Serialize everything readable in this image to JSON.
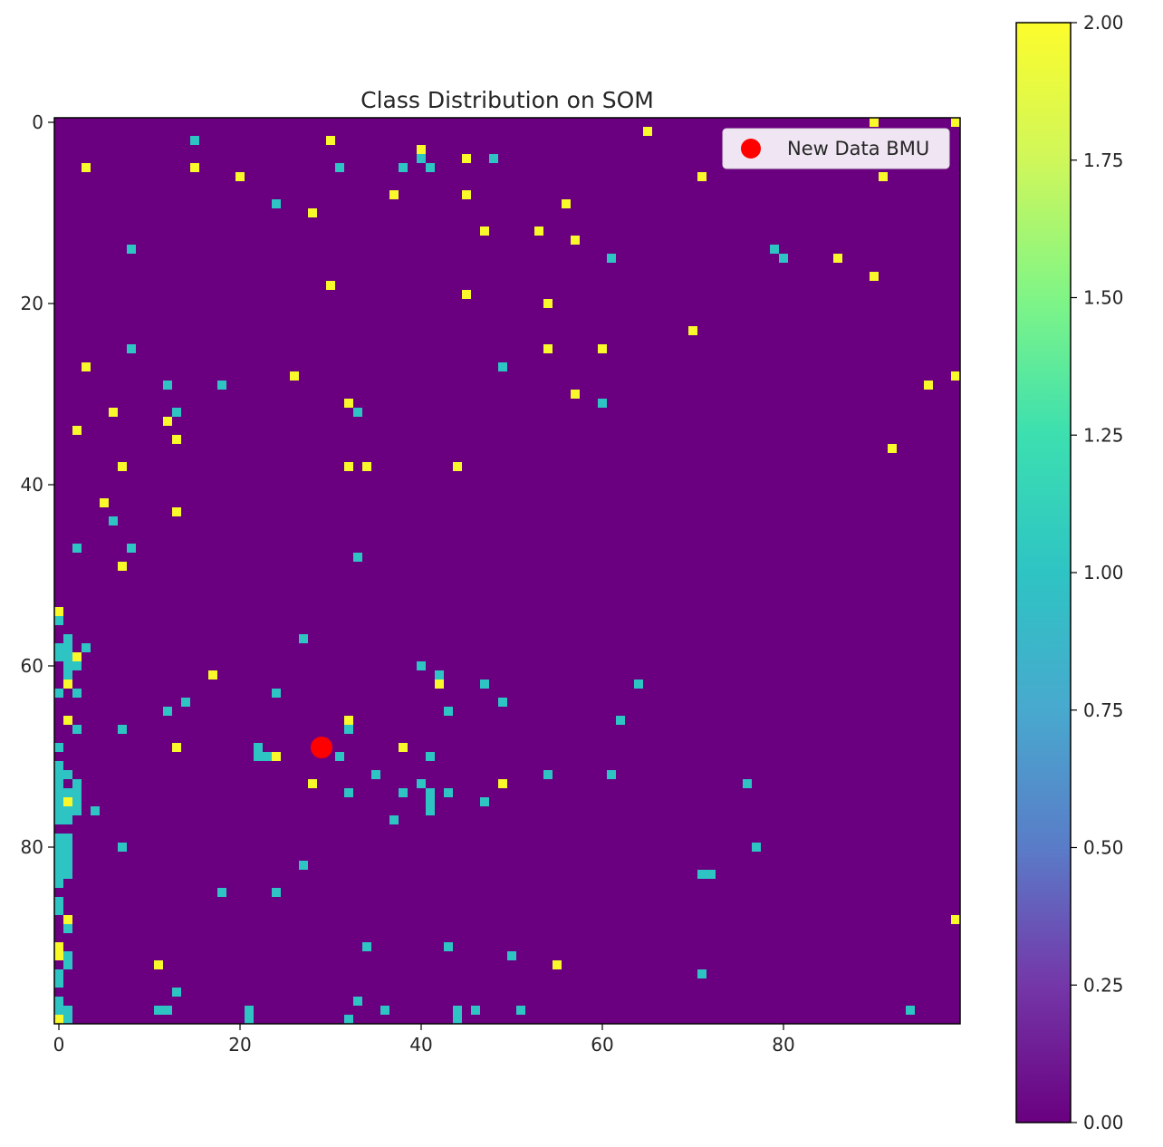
{
  "chart_data": {
    "type": "heatmap",
    "title": "Class Distribution on SOM",
    "grid_size": 100,
    "default_value": 0,
    "xlim": [
      0,
      99
    ],
    "ylim": [
      99,
      0
    ],
    "x_ticks": [
      "0",
      "20",
      "40",
      "60",
      "80"
    ],
    "y_ticks": [
      "0",
      "20",
      "40",
      "60",
      "80"
    ],
    "colorbar": {
      "range": [
        0,
        2
      ],
      "ticks": [
        "0.00",
        "0.25",
        "0.50",
        "0.75",
        "1.00",
        "1.25",
        "1.50",
        "1.75",
        "2.00"
      ]
    },
    "colors": {
      "class_0": "#6a0080",
      "class_1": "#2ec4c4",
      "class_2": "#f8f82a"
    },
    "class_2_cells": [
      [
        90,
        0
      ],
      [
        99,
        0
      ],
      [
        30,
        2
      ],
      [
        65,
        1
      ],
      [
        40,
        3
      ],
      [
        45,
        4
      ],
      [
        3,
        5
      ],
      [
        15,
        5
      ],
      [
        20,
        6
      ],
      [
        71,
        6
      ],
      [
        91,
        6
      ],
      [
        37,
        8
      ],
      [
        45,
        8
      ],
      [
        56,
        9
      ],
      [
        28,
        10
      ],
      [
        47,
        12
      ],
      [
        53,
        12
      ],
      [
        57,
        13
      ],
      [
        86,
        15
      ],
      [
        90,
        17
      ],
      [
        30,
        18
      ],
      [
        45,
        19
      ],
      [
        54,
        20
      ],
      [
        70,
        23
      ],
      [
        54,
        25
      ],
      [
        60,
        25
      ],
      [
        3,
        27
      ],
      [
        26,
        28
      ],
      [
        96,
        29
      ],
      [
        99,
        28
      ],
      [
        57,
        30
      ],
      [
        32,
        31
      ],
      [
        6,
        32
      ],
      [
        12,
        33
      ],
      [
        2,
        34
      ],
      [
        13,
        35
      ],
      [
        92,
        36
      ],
      [
        7,
        38
      ],
      [
        32,
        38
      ],
      [
        34,
        38
      ],
      [
        44,
        38
      ],
      [
        5,
        42
      ],
      [
        13,
        43
      ],
      [
        7,
        49
      ],
      [
        0,
        54
      ],
      [
        2,
        59
      ],
      [
        1,
        62
      ],
      [
        17,
        61
      ],
      [
        42,
        62
      ],
      [
        1,
        66
      ],
      [
        32,
        66
      ],
      [
        13,
        69
      ],
      [
        24,
        70
      ],
      [
        38,
        69
      ],
      [
        28,
        73
      ],
      [
        49,
        73
      ],
      [
        1,
        75
      ],
      [
        99,
        88
      ],
      [
        1,
        88
      ],
      [
        0,
        91
      ],
      [
        0,
        92
      ],
      [
        11,
        93
      ],
      [
        55,
        93
      ],
      [
        0,
        99
      ]
    ],
    "class_1_cells": [
      [
        15,
        2
      ],
      [
        31,
        5
      ],
      [
        38,
        5
      ],
      [
        41,
        5
      ],
      [
        40,
        4
      ],
      [
        48,
        4
      ],
      [
        24,
        9
      ],
      [
        8,
        14
      ],
      [
        61,
        15
      ],
      [
        79,
        14
      ],
      [
        80,
        15
      ],
      [
        8,
        25
      ],
      [
        49,
        27
      ],
      [
        12,
        29
      ],
      [
        18,
        29
      ],
      [
        13,
        32
      ],
      [
        33,
        32
      ],
      [
        60,
        31
      ],
      [
        6,
        44
      ],
      [
        2,
        47
      ],
      [
        8,
        47
      ],
      [
        33,
        48
      ],
      [
        0,
        55
      ],
      [
        27,
        57
      ],
      [
        3,
        58
      ],
      [
        0,
        58
      ],
      [
        1,
        58
      ],
      [
        0,
        59
      ],
      [
        1,
        57
      ],
      [
        1,
        59
      ],
      [
        1,
        60
      ],
      [
        2,
        60
      ],
      [
        1,
        61
      ],
      [
        0,
        63
      ],
      [
        2,
        63
      ],
      [
        40,
        60
      ],
      [
        42,
        61
      ],
      [
        47,
        62
      ],
      [
        64,
        62
      ],
      [
        24,
        63
      ],
      [
        14,
        64
      ],
      [
        12,
        65
      ],
      [
        43,
        65
      ],
      [
        49,
        64
      ],
      [
        62,
        66
      ],
      [
        2,
        67
      ],
      [
        7,
        67
      ],
      [
        32,
        67
      ],
      [
        0,
        69
      ],
      [
        22,
        69
      ],
      [
        22,
        70
      ],
      [
        23,
        70
      ],
      [
        31,
        70
      ],
      [
        41,
        70
      ],
      [
        0,
        71
      ],
      [
        0,
        72
      ],
      [
        1,
        72
      ],
      [
        0,
        73
      ],
      [
        2,
        73
      ],
      [
        35,
        72
      ],
      [
        54,
        72
      ],
      [
        61,
        72
      ],
      [
        40,
        73
      ],
      [
        76,
        73
      ],
      [
        0,
        74
      ],
      [
        2,
        74
      ],
      [
        1,
        74
      ],
      [
        32,
        74
      ],
      [
        38,
        74
      ],
      [
        41,
        74
      ],
      [
        43,
        74
      ],
      [
        0,
        75
      ],
      [
        2,
        75
      ],
      [
        41,
        75
      ],
      [
        47,
        75
      ],
      [
        0,
        76
      ],
      [
        1,
        76
      ],
      [
        2,
        76
      ],
      [
        4,
        76
      ],
      [
        41,
        76
      ],
      [
        0,
        77
      ],
      [
        1,
        77
      ],
      [
        37,
        77
      ],
      [
        0,
        79
      ],
      [
        1,
        79
      ],
      [
        0,
        80
      ],
      [
        1,
        80
      ],
      [
        0,
        81
      ],
      [
        1,
        81
      ],
      [
        0,
        82
      ],
      [
        1,
        82
      ],
      [
        0,
        83
      ],
      [
        1,
        83
      ],
      [
        7,
        80
      ],
      [
        77,
        80
      ],
      [
        27,
        82
      ],
      [
        71,
        83
      ],
      [
        72,
        83
      ],
      [
        0,
        84
      ],
      [
        18,
        85
      ],
      [
        24,
        85
      ],
      [
        0,
        86
      ],
      [
        0,
        87
      ],
      [
        1,
        89
      ],
      [
        34,
        91
      ],
      [
        43,
        91
      ],
      [
        50,
        92
      ],
      [
        0,
        92
      ],
      [
        1,
        92
      ],
      [
        1,
        93
      ],
      [
        0,
        94
      ],
      [
        71,
        94
      ],
      [
        0,
        95
      ],
      [
        13,
        96
      ],
      [
        0,
        97
      ],
      [
        33,
        97
      ],
      [
        0,
        98
      ],
      [
        1,
        98
      ],
      [
        11,
        98
      ],
      [
        12,
        98
      ],
      [
        21,
        98
      ],
      [
        36,
        98
      ],
      [
        44,
        98
      ],
      [
        46,
        98
      ],
      [
        51,
        98
      ],
      [
        94,
        98
      ],
      [
        1,
        99
      ],
      [
        21,
        99
      ],
      [
        32,
        99
      ],
      [
        44,
        99
      ]
    ],
    "bmu_marker": {
      "label": "New Data BMU",
      "x": 29,
      "y": 69,
      "color": "#ff0000"
    },
    "legend_position": "top-right"
  }
}
